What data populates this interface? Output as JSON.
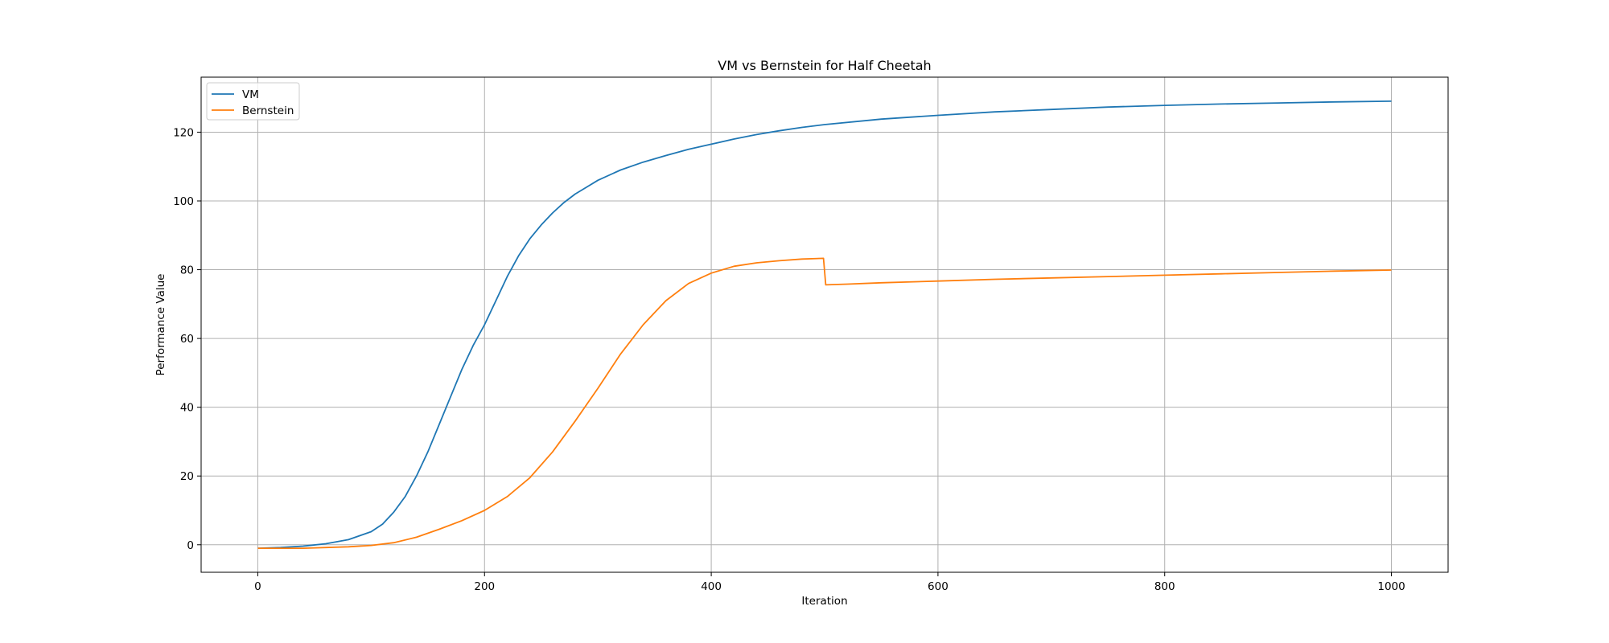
{
  "chart_data": {
    "type": "line",
    "title": "VM vs Bernstein for Half Cheetah",
    "xlabel": "Iteration",
    "ylabel": "Performance Value",
    "xlim": [
      -50,
      1050
    ],
    "ylim": [
      -8,
      136
    ],
    "xticks": [
      0,
      200,
      400,
      600,
      800,
      1000
    ],
    "yticks": [
      0,
      20,
      40,
      60,
      80,
      100,
      120
    ],
    "grid": true,
    "legend_position": "top-left",
    "series": [
      {
        "name": "VM",
        "color": "#1f77b4",
        "x": [
          0,
          20,
          40,
          60,
          80,
          100,
          110,
          120,
          130,
          140,
          150,
          160,
          170,
          180,
          190,
          200,
          210,
          220,
          230,
          240,
          250,
          260,
          270,
          280,
          290,
          300,
          320,
          340,
          360,
          380,
          400,
          420,
          440,
          460,
          480,
          500,
          550,
          600,
          650,
          700,
          750,
          800,
          850,
          900,
          950,
          1000
        ],
        "y": [
          -1,
          -0.8,
          -0.4,
          0.3,
          1.5,
          3.8,
          6,
          9.5,
          14,
          20,
          27,
          35,
          43,
          51,
          58,
          64,
          71,
          78,
          84,
          89,
          93,
          96.5,
          99.5,
          102,
          104,
          106,
          109,
          111.3,
          113.2,
          115,
          116.5,
          118,
          119.3,
          120.4,
          121.4,
          122.2,
          123.8,
          124.9,
          125.9,
          126.6,
          127.3,
          127.8,
          128.2,
          128.5,
          128.8,
          129
        ]
      },
      {
        "name": "Bernstein",
        "color": "#ff7f0e",
        "x": [
          0,
          20,
          40,
          60,
          80,
          100,
          120,
          140,
          160,
          180,
          200,
          220,
          240,
          260,
          280,
          300,
          320,
          340,
          360,
          380,
          400,
          420,
          440,
          460,
          480,
          499,
          501,
          520,
          550,
          600,
          650,
          700,
          750,
          800,
          850,
          900,
          950,
          1000
        ],
        "y": [
          -1,
          -1,
          -1,
          -0.8,
          -0.6,
          -0.2,
          0.6,
          2.2,
          4.5,
          7,
          10,
          14,
          19.5,
          27,
          36,
          45.5,
          55.5,
          64,
          71,
          76,
          79,
          81,
          82,
          82.6,
          83.1,
          83.3,
          75.6,
          75.8,
          76.2,
          76.7,
          77.2,
          77.6,
          78,
          78.4,
          78.8,
          79.2,
          79.6,
          79.9
        ]
      }
    ]
  }
}
